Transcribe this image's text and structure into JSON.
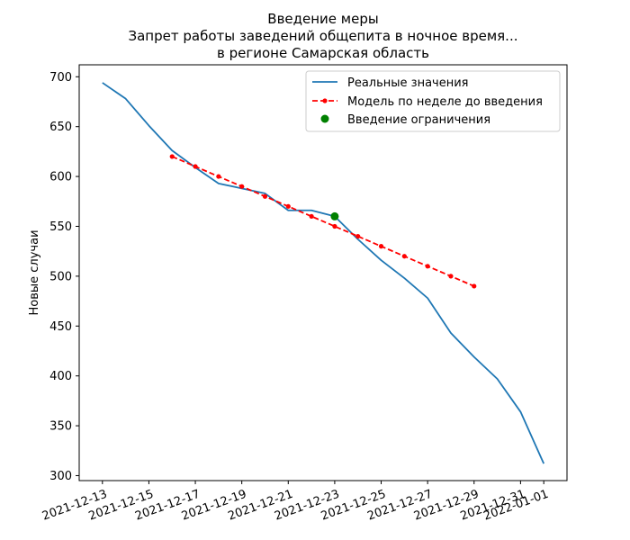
{
  "chart_data": {
    "type": "line",
    "title_lines": [
      "Введение меры",
      "Запрет работы заведений общепита в ночное время...",
      "в регионе Самарская область"
    ],
    "xlabel": "",
    "ylabel": "Новые случаи",
    "ylim": [
      295,
      712
    ],
    "yticks": [
      300,
      350,
      400,
      450,
      500,
      550,
      600,
      650,
      700
    ],
    "x_range": [
      "2021-12-12",
      "2022-01-02"
    ],
    "x_ticks": [
      "2021-12-13",
      "2021-12-15",
      "2021-12-17",
      "2021-12-19",
      "2021-12-21",
      "2021-12-23",
      "2021-12-25",
      "2021-12-27",
      "2021-12-29",
      "2021-12-31",
      "2022-01-01"
    ],
    "legend_position": "top-right",
    "grid": false,
    "series": [
      {
        "name": "Реальные значения",
        "style": "line",
        "color": "#1f77b4",
        "x": [
          "2021-12-13",
          "2021-12-14",
          "2021-12-15",
          "2021-12-16",
          "2021-12-17",
          "2021-12-18",
          "2021-12-19",
          "2021-12-20",
          "2021-12-21",
          "2021-12-22",
          "2021-12-23",
          "2021-12-24",
          "2021-12-25",
          "2021-12-26",
          "2021-12-27",
          "2021-12-28",
          "2021-12-29",
          "2021-12-30",
          "2021-12-31",
          "2022-01-01"
        ],
        "y": [
          694,
          678,
          651,
          626,
          609,
          593,
          588,
          583,
          566,
          566,
          560,
          537,
          516,
          498,
          478,
          443,
          419,
          397,
          364,
          312
        ]
      },
      {
        "name": "Модель по неделе до введения",
        "style": "dashed-dot",
        "color": "#ff0000",
        "x": [
          "2021-12-16",
          "2021-12-17",
          "2021-12-18",
          "2021-12-19",
          "2021-12-20",
          "2021-12-21",
          "2021-12-22",
          "2021-12-23",
          "2021-12-24",
          "2021-12-25",
          "2021-12-26",
          "2021-12-27",
          "2021-12-28",
          "2021-12-29"
        ],
        "y": [
          620,
          610,
          600,
          590,
          580,
          570,
          560,
          550,
          540,
          530,
          520,
          510,
          500,
          490
        ]
      },
      {
        "name": "Введение ограничения",
        "style": "marker",
        "color": "#008000",
        "x": [
          "2021-12-23"
        ],
        "y": [
          560
        ]
      }
    ]
  }
}
